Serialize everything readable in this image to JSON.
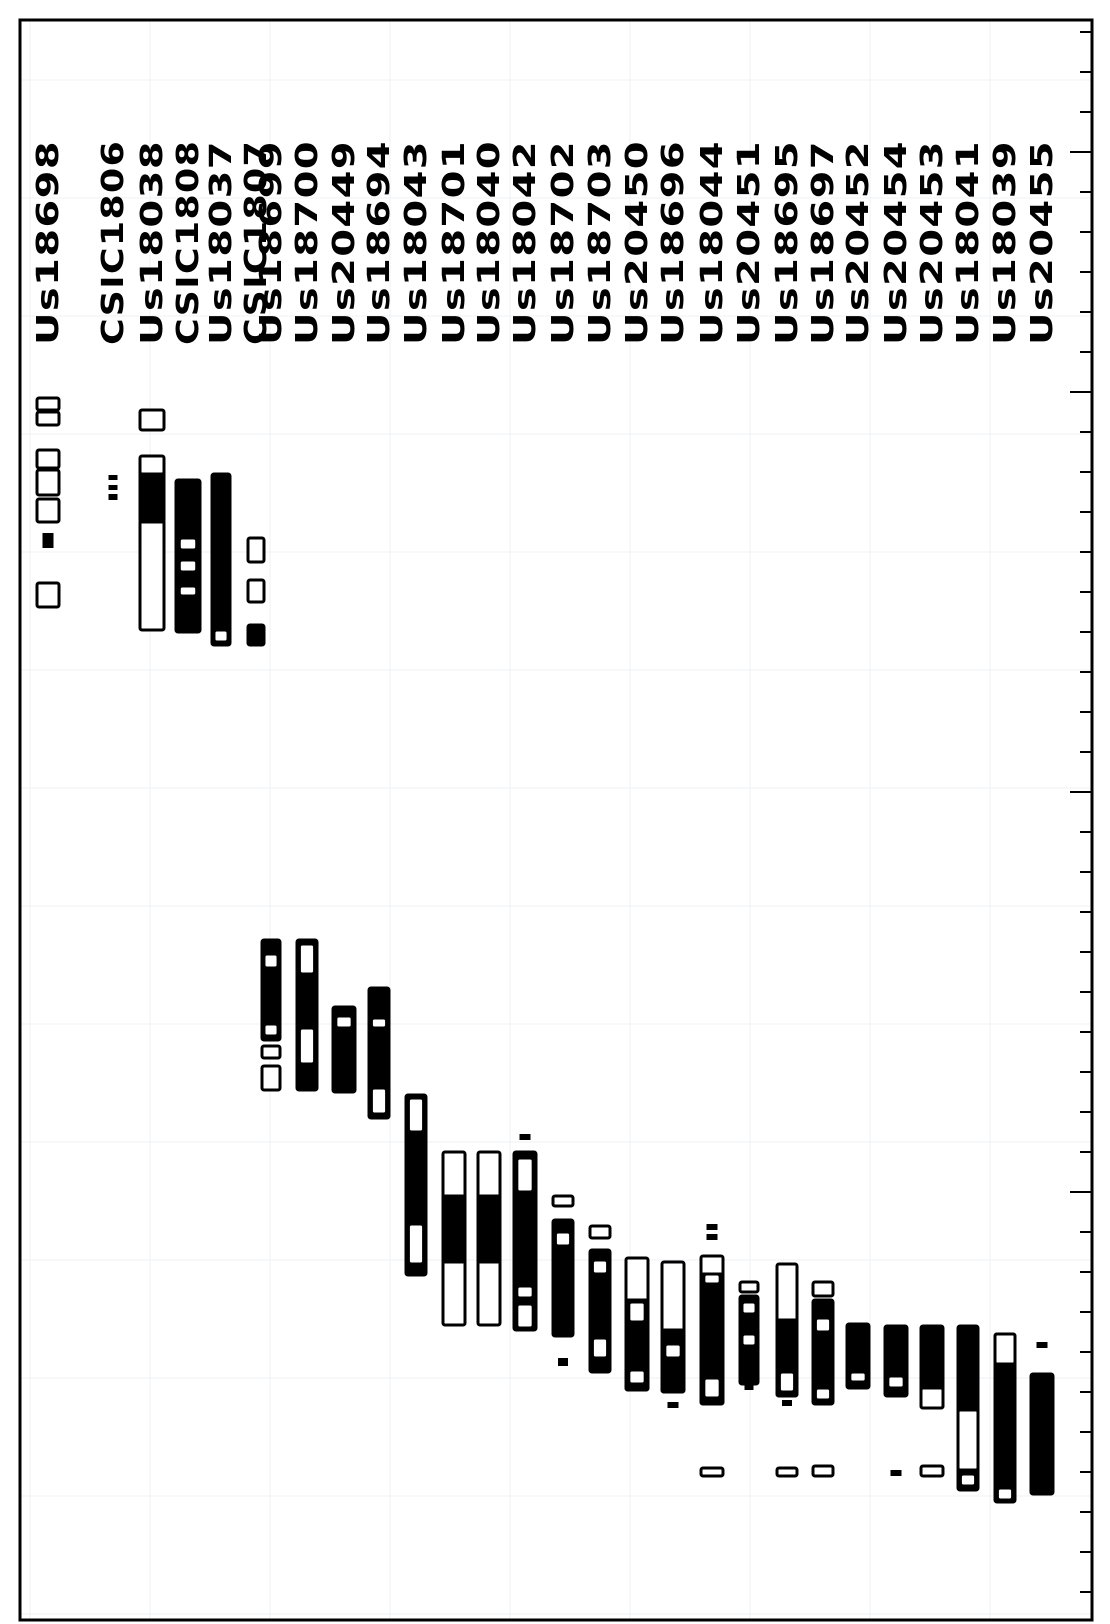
{
  "samples": [
    "Us18698",
    "CSIC1806",
    "Us18038",
    "CSIC1808",
    "Us18037",
    "CSIC1807",
    "Us18699",
    "Us18700",
    "Us20449",
    "Us18694",
    "Us18043",
    "Us18701",
    "Us18040",
    "Us18042",
    "Us18702",
    "Us18703",
    "Us20450",
    "Us18696",
    "Us18044",
    "Us20451",
    "Us18695",
    "Us18697",
    "Us20452",
    "Us20454",
    "Us20453",
    "Us18041",
    "Us18039",
    "Us20455"
  ],
  "colors": {
    "ink": "#000000",
    "background": "#ffffff",
    "grid": "#eef1f6"
  }
}
